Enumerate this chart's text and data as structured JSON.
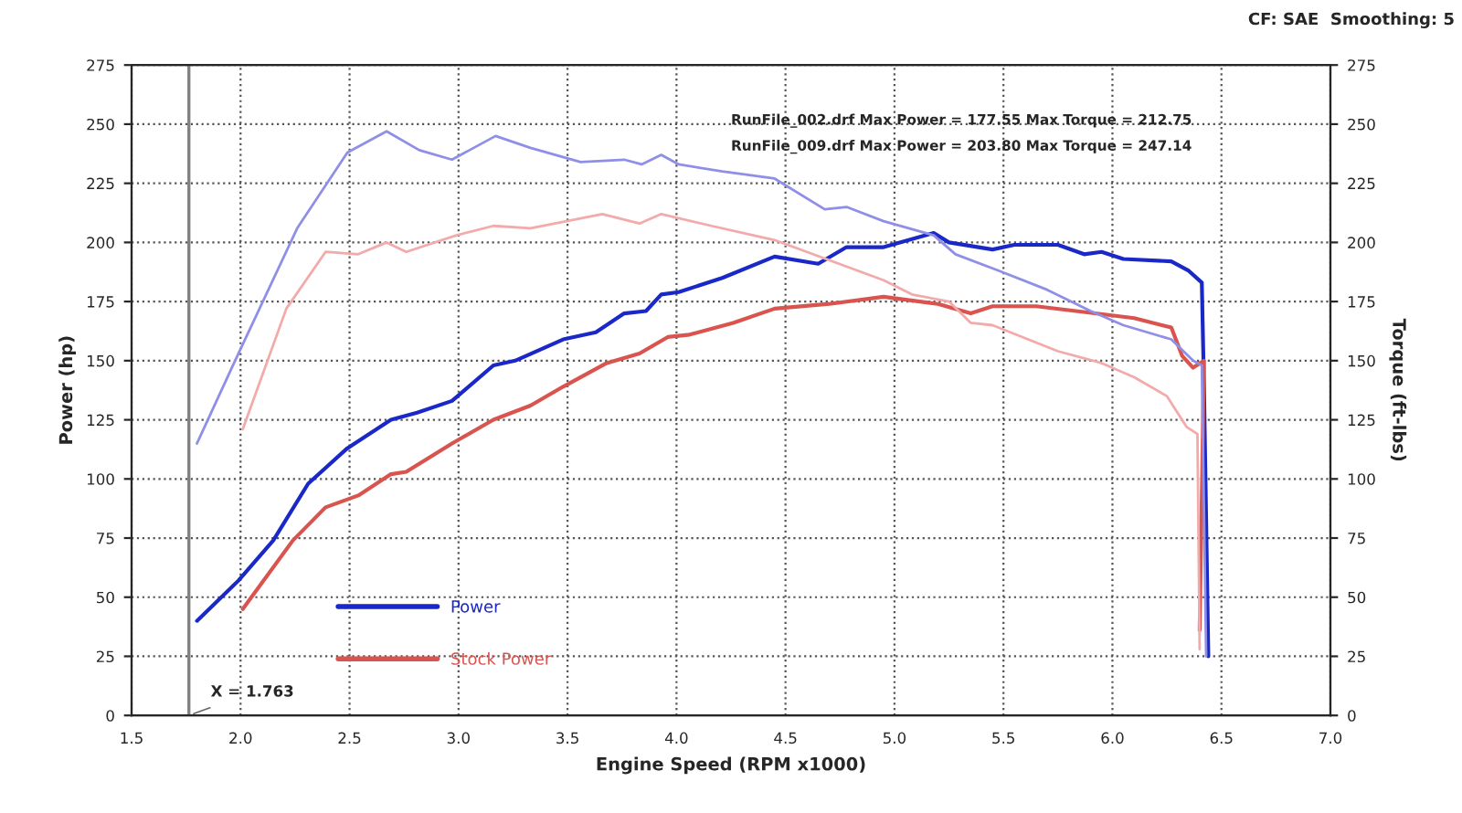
{
  "chart_data": {
    "type": "line",
    "xlabel": "Engine Speed (RPM x1000)",
    "ylabel": "Power (hp)",
    "y2label": "Torque (ft-lbs)",
    "annotations": [
      "CF: SAE  Smoothing: 5",
      "RunFile_002.drf Max Power = 177.55 Max Torque = 212.75",
      "RunFile_009.drf Max Power = 203.80 Max Torque = 247.14"
    ],
    "series": [
      {
        "name": "Power",
        "color": "#1a28c8",
        "x": [
          1.8,
          1.99,
          2.15,
          2.31,
          2.49,
          2.69,
          2.81,
          2.97,
          3.16,
          3.26,
          3.48,
          3.63,
          3.76,
          3.86,
          3.93,
          4.01,
          4.21,
          4.45,
          4.65,
          4.78,
          4.95,
          5.18,
          5.25,
          5.45,
          5.55,
          5.75,
          5.87,
          5.95,
          6.05,
          6.27,
          6.35,
          6.41,
          6.42,
          6.44
        ],
        "values": [
          40,
          57,
          74,
          98,
          113,
          125,
          128,
          133,
          148,
          150,
          159,
          162,
          170,
          171,
          178,
          179,
          185,
          194,
          191,
          198,
          198,
          204,
          200,
          197,
          199,
          199,
          195,
          196,
          193,
          192,
          188,
          183,
          139,
          25
        ]
      },
      {
        "name": "Stock Power",
        "color": "#d9534f",
        "x": [
          2.01,
          2.24,
          2.39,
          2.54,
          2.69,
          2.76,
          2.97,
          3.16,
          3.33,
          3.48,
          3.68,
          3.83,
          3.96,
          4.06,
          4.26,
          4.45,
          4.7,
          4.95,
          5.2,
          5.35,
          5.45,
          5.65,
          5.92,
          6.1,
          6.27,
          6.32,
          6.37,
          6.42,
          6.4
        ],
        "values": [
          45,
          74,
          88,
          93,
          102,
          103,
          115,
          125,
          131,
          139,
          149,
          153,
          160,
          161,
          166,
          172,
          174,
          177,
          174,
          170,
          173,
          173,
          170,
          168,
          164,
          152,
          147,
          150,
          36
        ]
      },
      {
        "color": "#8f8fe8",
        "axis": "y2",
        "x": [
          1.8,
          1.99,
          2.26,
          2.49,
          2.67,
          2.82,
          2.97,
          3.17,
          3.33,
          3.56,
          3.76,
          3.84,
          3.93,
          4.01,
          4.21,
          4.45,
          4.68,
          4.78,
          4.95,
          5.18,
          5.28,
          5.48,
          5.7,
          5.9,
          6.05,
          6.27,
          6.37,
          6.41,
          6.43
        ],
        "values": [
          115,
          153,
          206,
          238,
          247,
          239,
          235,
          245,
          240,
          234,
          235,
          233,
          237,
          233,
          230,
          227,
          214,
          215,
          209,
          203,
          195,
          188,
          180,
          171,
          165,
          159,
          150,
          148,
          25
        ]
      },
      {
        "color": "#f2aaaa",
        "axis": "y2",
        "x": [
          2.01,
          2.21,
          2.39,
          2.54,
          2.67,
          2.76,
          2.99,
          3.16,
          3.33,
          3.66,
          3.83,
          3.93,
          4.16,
          4.45,
          4.95,
          5.08,
          5.25,
          5.35,
          5.45,
          5.75,
          5.95,
          6.1,
          6.25,
          6.34,
          6.39,
          6.4
        ],
        "values": [
          121,
          172,
          196,
          195,
          200,
          196,
          203,
          207,
          206,
          212,
          208,
          212,
          207,
          201,
          184,
          178,
          175,
          166,
          165,
          154,
          149,
          143,
          135,
          122,
          119,
          28
        ]
      }
    ],
    "xlim": [
      1.5,
      7.0
    ],
    "xticks": [
      1.5,
      {
        "value": 2,
        "label": "2.0"
      },
      2.5,
      {
        "value": 3,
        "label": "3.0"
      },
      3.5,
      {
        "value": 4,
        "label": "4.0"
      },
      4.5,
      {
        "value": 5,
        "label": "5.0"
      },
      5.5,
      {
        "value": 6,
        "label": "6.0"
      },
      6.5,
      {
        "value": 7,
        "label": "7.0"
      }
    ],
    "ylim": [
      0,
      275
    ],
    "yticks": [
      0,
      25,
      50,
      75,
      100,
      125,
      150,
      175,
      200,
      225,
      250,
      275
    ],
    "y2lim": [
      0,
      275
    ],
    "y2ticks": [
      0,
      25,
      50,
      75,
      100,
      125,
      150,
      175,
      200,
      225,
      250,
      275
    ],
    "ref_lines": [
      {
        "axis": "x",
        "value": 1.763,
        "label": "X = 1.763",
        "color": "#808080"
      }
    ],
    "grid": true,
    "legend": "bottom left",
    "line_style": "solid",
    "marker": "none"
  }
}
